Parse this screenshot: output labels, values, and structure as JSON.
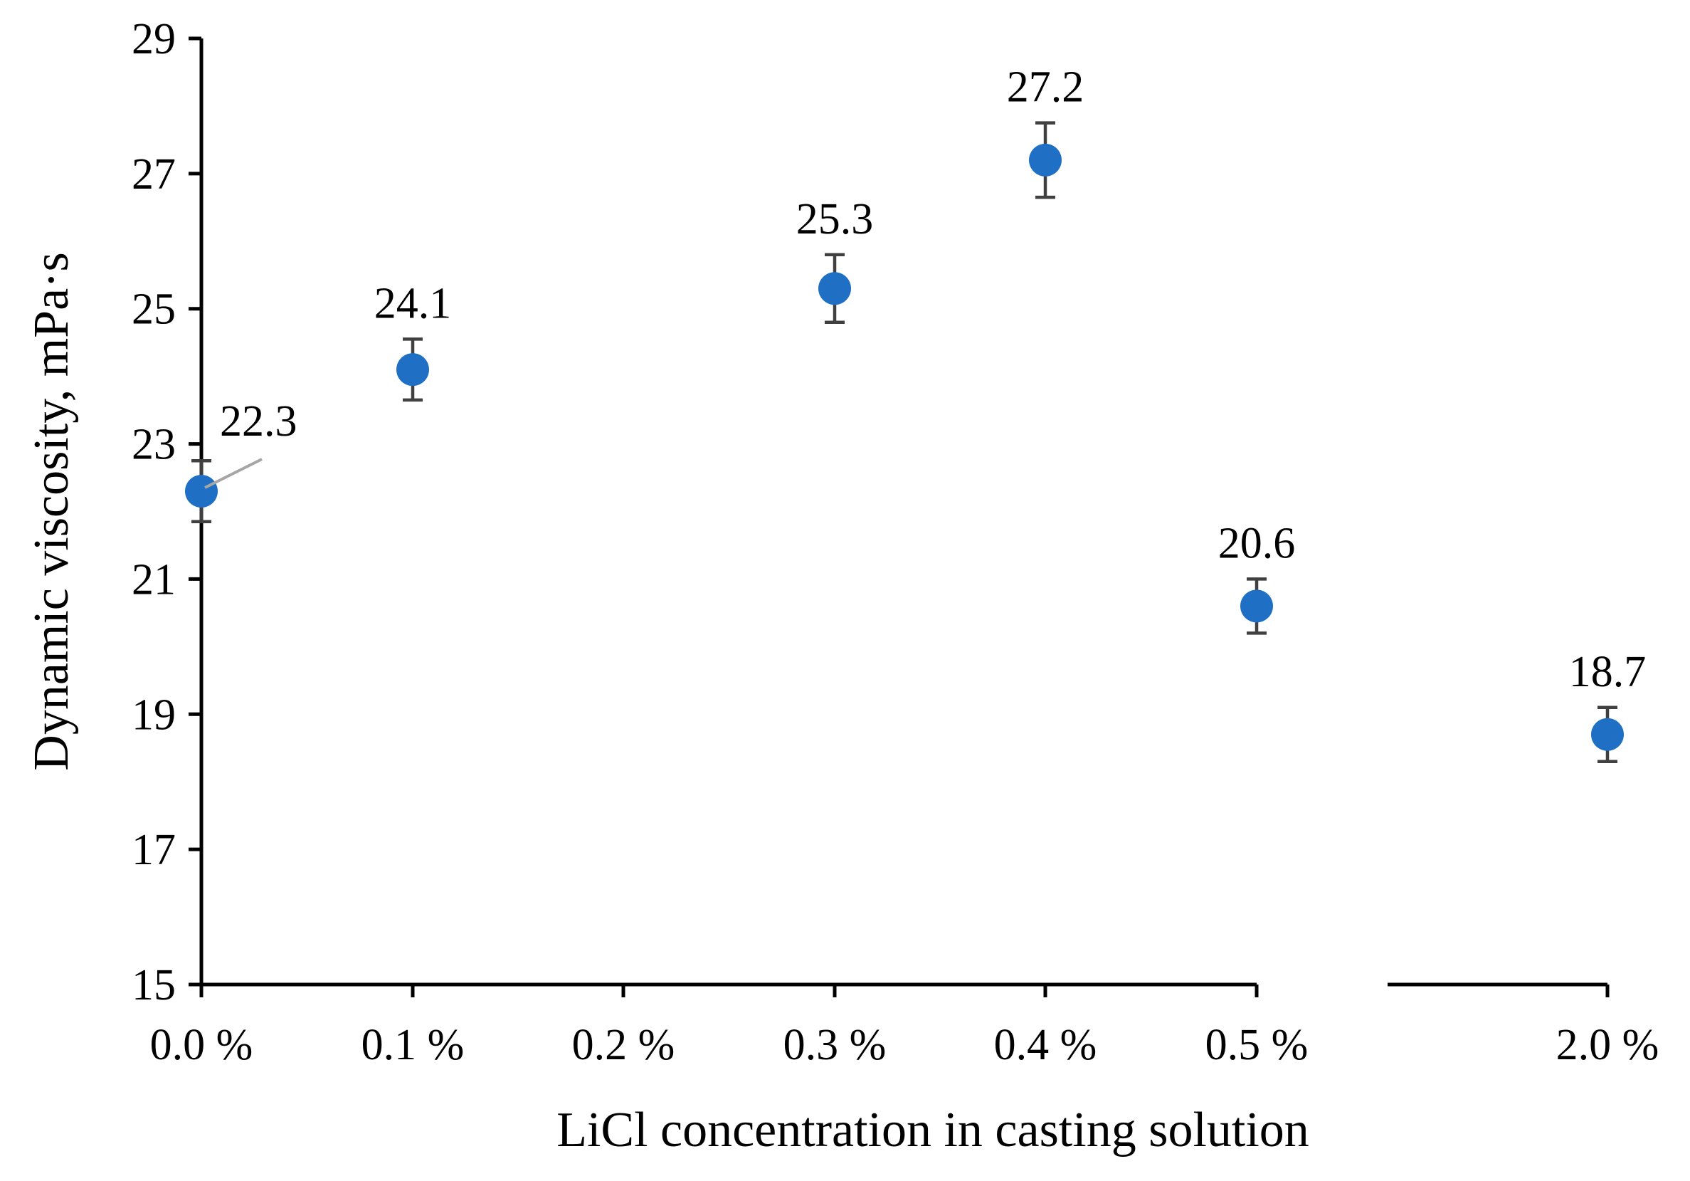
{
  "chart_data": {
    "type": "scatter",
    "title": "",
    "xlabel": "LiCl concentration in casting solution",
    "ylabel": "Dynamic viscosity, mPa·s",
    "ylim": [
      15,
      29
    ],
    "yticks": [
      15,
      17,
      19,
      21,
      23,
      25,
      27,
      29
    ],
    "ytick_labels": [
      "15",
      "17",
      "19",
      "21",
      "23",
      "25",
      "27",
      "29"
    ],
    "x_break": "between 0.5 % and 2.0 %",
    "categories": [
      "0.0 %",
      "0.1 %",
      "0.2 %",
      "0.3 %",
      "0.4 %",
      "0.5 %",
      "2.0 %"
    ],
    "series": [
      {
        "name": "Dynamic viscosity",
        "color": "#1f6fc5",
        "points": [
          {
            "x": "0.0 %",
            "y": 22.3,
            "err": 0.45,
            "label": "22.3"
          },
          {
            "x": "0.1 %",
            "y": 24.1,
            "err": 0.45,
            "label": "24.1"
          },
          {
            "x": "0.3 %",
            "y": 25.3,
            "err": 0.5,
            "label": "25.3"
          },
          {
            "x": "0.4 %",
            "y": 27.2,
            "err": 0.55,
            "label": "27.2"
          },
          {
            "x": "0.5 %",
            "y": 20.6,
            "err": 0.4,
            "label": "20.6"
          },
          {
            "x": "2.0 %",
            "y": 18.7,
            "err": 0.4,
            "label": "18.7"
          }
        ]
      }
    ],
    "legend": "none",
    "grid": false
  }
}
